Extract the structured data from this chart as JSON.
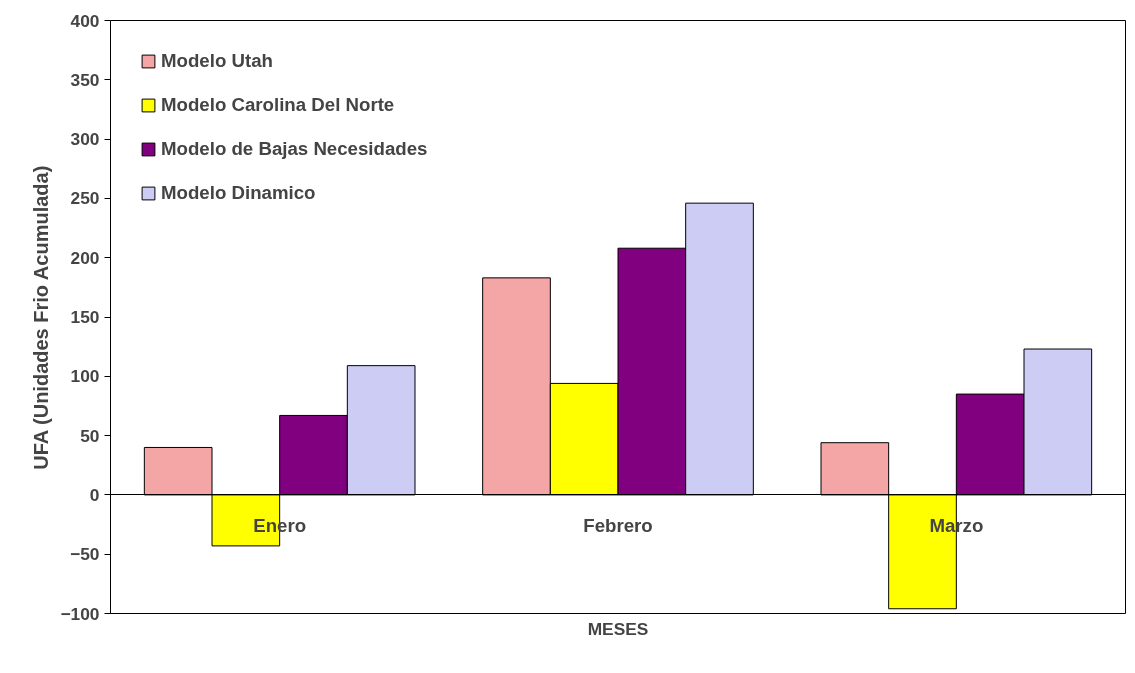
{
  "chart_data": {
    "type": "bar",
    "xlabel": "MESES",
    "ylabel": "UFA (Unidades Frio Acumulada)",
    "categories": [
      "Enero",
      "Febrero",
      "Marzo"
    ],
    "series": [
      {
        "name": "Modelo Utah",
        "color": "#f4a6a6",
        "values": [
          40,
          183,
          44
        ]
      },
      {
        "name": "Modelo Carolina Del Norte",
        "color": "#ffff00",
        "values": [
          -43,
          94,
          -96
        ]
      },
      {
        "name": "Modelo de Bajas Necesidades",
        "color": "#800080",
        "values": [
          67,
          208,
          85
        ]
      },
      {
        "name": "Modelo Dinamico",
        "color": "#ccccf4",
        "values": [
          109,
          246,
          123
        ]
      }
    ],
    "ylim": [
      -100,
      400
    ],
    "yticks": [
      -100,
      -50,
      0,
      50,
      100,
      150,
      200,
      250,
      300,
      350,
      400
    ],
    "grid": false,
    "legend": "top left"
  }
}
